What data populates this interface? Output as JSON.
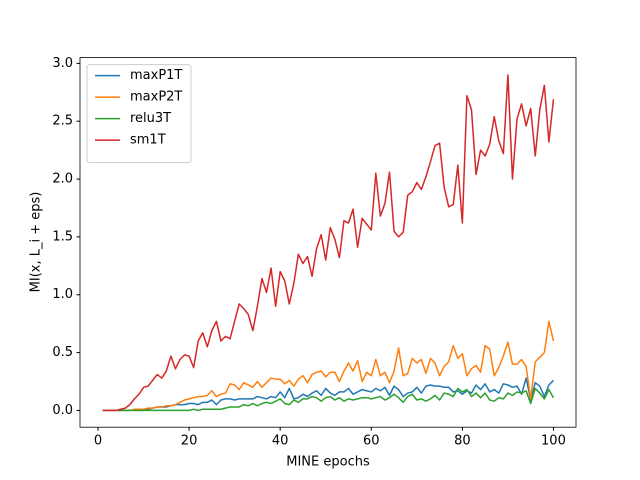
{
  "chart_data": {
    "type": "line",
    "xlabel": "MINE epochs",
    "ylabel": "MI(x, L_i + eps)",
    "x": [
      1,
      2,
      3,
      4,
      5,
      6,
      7,
      8,
      9,
      10,
      11,
      12,
      13,
      14,
      15,
      16,
      17,
      18,
      19,
      20,
      21,
      22,
      23,
      24,
      25,
      26,
      27,
      28,
      29,
      30,
      31,
      32,
      33,
      34,
      35,
      36,
      37,
      38,
      39,
      40,
      41,
      42,
      43,
      44,
      45,
      46,
      47,
      48,
      49,
      50,
      51,
      52,
      53,
      54,
      55,
      56,
      57,
      58,
      59,
      60,
      61,
      62,
      63,
      64,
      65,
      66,
      67,
      68,
      69,
      70,
      71,
      72,
      73,
      74,
      75,
      76,
      77,
      78,
      79,
      80,
      81,
      82,
      83,
      84,
      85,
      86,
      87,
      88,
      89,
      90,
      91,
      92,
      93,
      94,
      95,
      96,
      97,
      98,
      99,
      100
    ],
    "xlim": [
      -3.95,
      104.95
    ],
    "ylim": [
      -0.145,
      3.05
    ],
    "xticks": [
      0,
      20,
      40,
      60,
      80,
      100
    ],
    "yticks": [
      {
        "value": 0,
        "label": "0.0"
      },
      {
        "value": 0.5,
        "label": "0.5"
      },
      {
        "value": 1,
        "label": "1.0"
      },
      {
        "value": 1.5,
        "label": "1.5"
      },
      {
        "value": 2,
        "label": "2.0"
      },
      {
        "value": 2.5,
        "label": "2.5"
      },
      {
        "value": 3,
        "label": "3.0"
      }
    ],
    "grid": false,
    "legend": "upper left",
    "series": [
      {
        "name": "maxP1T",
        "color": "#1f77b4",
        "values": [
          0,
          0,
          0,
          0,
          0,
          0,
          0,
          0,
          0,
          0,
          0.01,
          0.02,
          0.03,
          0.03,
          0.03,
          0.04,
          0.05,
          0.05,
          0.05,
          0.06,
          0.06,
          0.05,
          0.07,
          0.07,
          0.09,
          0.05,
          0.09,
          0.1,
          0.1,
          0.09,
          0.1,
          0.1,
          0.1,
          0.1,
          0.12,
          0.11,
          0.1,
          0.12,
          0.11,
          0.16,
          0.11,
          0.19,
          0.1,
          0.11,
          0.14,
          0.12,
          0.15,
          0.17,
          0.13,
          0.19,
          0.15,
          0.13,
          0.16,
          0.16,
          0.19,
          0.14,
          0.16,
          0.18,
          0.17,
          0.16,
          0.19,
          0.17,
          0.2,
          0.13,
          0.21,
          0.18,
          0.12,
          0.15,
          0.16,
          0.2,
          0.15,
          0.21,
          0.22,
          0.21,
          0.21,
          0.2,
          0.2,
          0.16,
          0.17,
          0.14,
          0.17,
          0.15,
          0.22,
          0.18,
          0.23,
          0.16,
          0.18,
          0.15,
          0.23,
          0.22,
          0.2,
          0.21,
          0.14,
          0.28,
          0.09,
          0.24,
          0.21,
          0.12,
          0.22,
          0.26
        ]
      },
      {
        "name": "maxP2T",
        "color": "#ff7f0e",
        "values": [
          0,
          0,
          0,
          0,
          0,
          0,
          0,
          0.01,
          0.01,
          0.01,
          0.02,
          0.02,
          0.03,
          0.03,
          0.04,
          0.04,
          0.05,
          0.07,
          0.09,
          0.1,
          0.11,
          0.12,
          0.12,
          0.13,
          0.17,
          0.12,
          0.14,
          0.15,
          0.23,
          0.22,
          0.18,
          0.24,
          0.22,
          0.2,
          0.25,
          0.2,
          0.24,
          0.28,
          0.27,
          0.27,
          0.23,
          0.26,
          0.21,
          0.27,
          0.3,
          0.24,
          0.31,
          0.33,
          0.34,
          0.29,
          0.33,
          0.33,
          0.25,
          0.34,
          0.41,
          0.34,
          0.43,
          0.25,
          0.33,
          0.3,
          0.44,
          0.3,
          0.33,
          0.24,
          0.34,
          0.54,
          0.3,
          0.32,
          0.45,
          0.41,
          0.44,
          0.32,
          0.45,
          0.41,
          0.3,
          0.38,
          0.42,
          0.56,
          0.45,
          0.49,
          0.3,
          0.36,
          0.39,
          0.33,
          0.56,
          0.53,
          0.3,
          0.37,
          0.47,
          0.59,
          0.4,
          0.4,
          0.44,
          0.38,
          0.1,
          0.42,
          0.46,
          0.5,
          0.77,
          0.6
        ]
      },
      {
        "name": "relu3T",
        "color": "#2ca02c",
        "values": [
          0,
          0,
          0,
          0,
          0,
          0,
          0,
          0,
          0,
          0,
          0,
          0,
          0,
          0,
          0,
          0,
          0,
          0,
          0,
          0,
          0.01,
          0,
          0.01,
          0.01,
          0.01,
          0.01,
          0.01,
          0.02,
          0.03,
          0.03,
          0.03,
          0.05,
          0.04,
          0.06,
          0.04,
          0.06,
          0.07,
          0.06,
          0.08,
          0.1,
          0.06,
          0.05,
          0.09,
          0.07,
          0.1,
          0.1,
          0.12,
          0.11,
          0.08,
          0.11,
          0.12,
          0.09,
          0.11,
          0.08,
          0.1,
          0.09,
          0.1,
          0.11,
          0.11,
          0.1,
          0.11,
          0.12,
          0.09,
          0.11,
          0.14,
          0.11,
          0.07,
          0.12,
          0.14,
          0.09,
          0.1,
          0.08,
          0.1,
          0.13,
          0.09,
          0.15,
          0.14,
          0.12,
          0.19,
          0.16,
          0.18,
          0.12,
          0.15,
          0.11,
          0.15,
          0.09,
          0.08,
          0.11,
          0.1,
          0.15,
          0.13,
          0.16,
          0.15,
          0.17,
          0.06,
          0.19,
          0.15,
          0.1,
          0.18,
          0.11
        ]
      },
      {
        "name": "sm1T",
        "color": "#d62728",
        "values": [
          0,
          0,
          0,
          0,
          0.01,
          0.02,
          0.05,
          0.1,
          0.14,
          0.2,
          0.21,
          0.26,
          0.31,
          0.28,
          0.34,
          0.47,
          0.36,
          0.44,
          0.48,
          0.47,
          0.37,
          0.6,
          0.67,
          0.55,
          0.69,
          0.77,
          0.6,
          0.64,
          0.62,
          0.77,
          0.92,
          0.88,
          0.83,
          0.69,
          0.9,
          1.14,
          1.02,
          1.23,
          0.9,
          1.2,
          1.12,
          0.92,
          1.1,
          1.35,
          1.27,
          1.33,
          1.16,
          1.4,
          1.52,
          1.3,
          1.58,
          1.48,
          1.32,
          1.64,
          1.62,
          1.74,
          1.41,
          1.66,
          1.61,
          1.56,
          2.05,
          1.68,
          1.79,
          2.06,
          1.55,
          1.5,
          1.54,
          1.86,
          1.89,
          1.97,
          1.91,
          2.02,
          2.15,
          2.29,
          2.31,
          1.93,
          1.76,
          1.78,
          2.12,
          1.62,
          2.72,
          2.6,
          2.04,
          2.25,
          2.2,
          2.3,
          2.54,
          2.33,
          2.22,
          2.9,
          2.0,
          2.52,
          2.65,
          2.46,
          2.61,
          2.2,
          2.6,
          2.81,
          2.32,
          2.69
        ]
      }
    ]
  }
}
